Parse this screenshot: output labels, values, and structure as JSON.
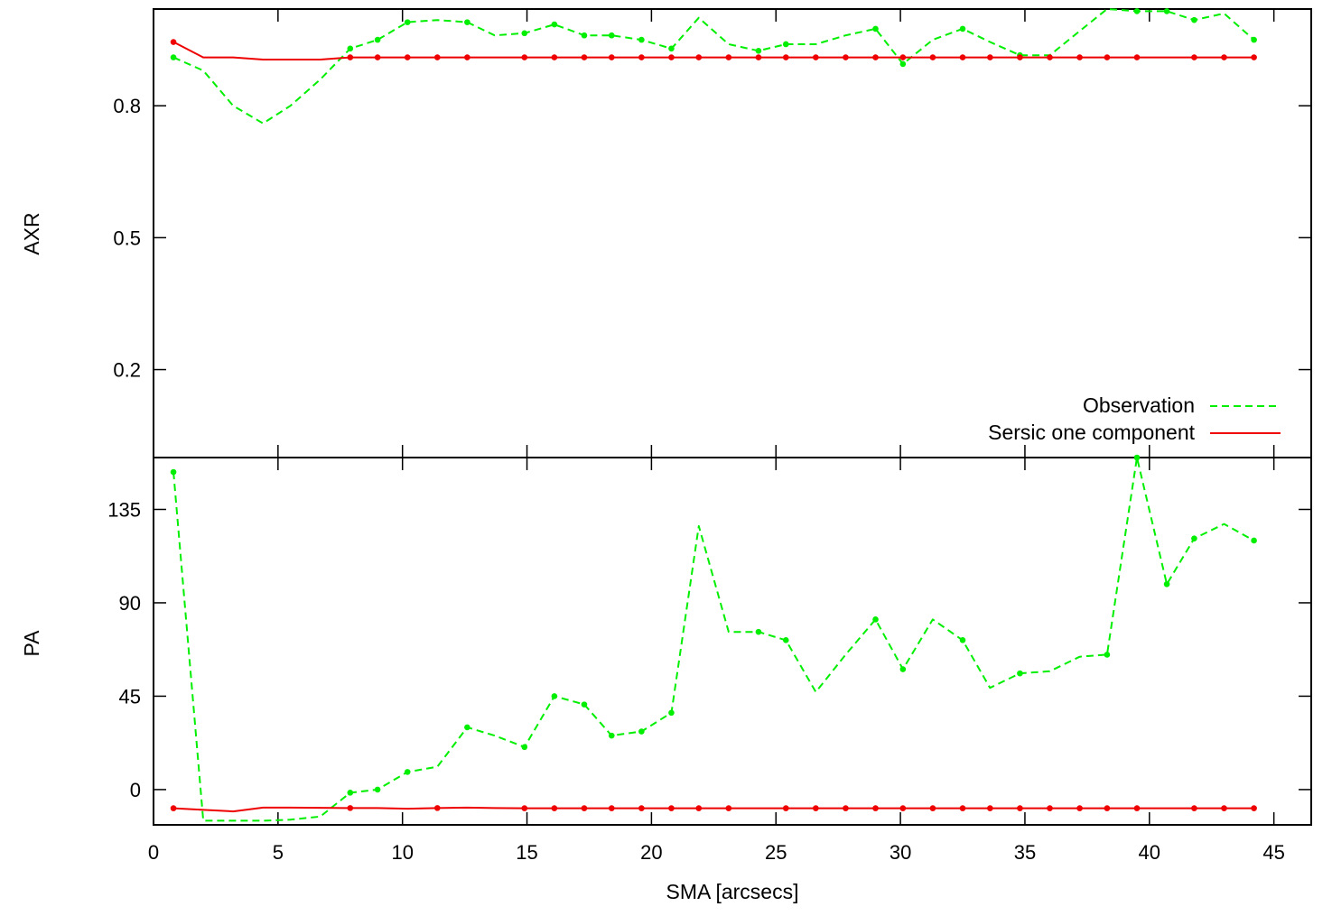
{
  "x_axis": {
    "label": "SMA [arcsecs]",
    "range": [
      0,
      46.5
    ],
    "ticks": [
      0,
      5,
      10,
      15,
      20,
      25,
      30,
      35,
      40,
      45
    ],
    "tick_labels": [
      "0",
      "5",
      "10",
      "15",
      "20",
      "25",
      "30",
      "35",
      "40",
      "45"
    ]
  },
  "legend": {
    "observation": "Observation",
    "sersic": "Sersic one component",
    "placement": "bottom-right of top panel"
  },
  "colors": {
    "observation": "#00ee00",
    "sersic": "#ee0000",
    "axes": "#000000"
  },
  "chart_data": [
    {
      "type": "line",
      "panel": "top",
      "ylabel": "AXR",
      "xlabel": "",
      "ylim": [
        0.0,
        1.02
      ],
      "yticks": [
        0.2,
        0.5,
        0.8
      ],
      "ytick_labels": [
        "0.2",
        "0.5",
        "0.8"
      ],
      "series": [
        {
          "name": "Observation",
          "style": "dashed",
          "x": [
            0.8,
            2.0,
            3.2,
            4.4,
            5.5,
            6.7,
            7.9,
            9.0,
            10.2,
            11.4,
            12.6,
            13.7,
            14.9,
            16.1,
            17.3,
            18.4,
            19.6,
            20.8,
            21.9,
            23.1,
            24.3,
            25.4,
            26.6,
            27.8,
            29.0,
            30.1,
            31.3,
            32.5,
            33.6,
            34.8,
            36.0,
            37.2,
            38.3,
            39.5,
            40.7,
            41.8,
            43.0,
            44.2
          ],
          "y": [
            0.91,
            0.88,
            0.8,
            0.76,
            0.8,
            0.86,
            0.93,
            0.95,
            0.99,
            0.995,
            0.99,
            0.96,
            0.965,
            0.985,
            0.96,
            0.96,
            0.95,
            0.93,
            1.0,
            0.94,
            0.925,
            0.94,
            0.94,
            0.96,
            0.975,
            0.895,
            0.95,
            0.975,
            0.945,
            0.915,
            0.915,
            0.97,
            1.02,
            1.015,
            1.015,
            0.995,
            1.01,
            0.95
          ],
          "markers_at": [
            0.8,
            7.9,
            9.0,
            10.2,
            12.6,
            14.9,
            16.1,
            17.3,
            18.4,
            19.6,
            20.8,
            24.3,
            25.4,
            29.0,
            30.1,
            32.5,
            34.8,
            39.5,
            40.7,
            41.8,
            44.2
          ]
        },
        {
          "name": "Sersic one component",
          "style": "solid",
          "x": [
            0.8,
            2.0,
            3.2,
            4.4,
            5.5,
            6.7,
            7.9,
            9.0,
            10.2,
            11.4,
            12.6,
            13.7,
            14.9,
            16.1,
            17.3,
            18.4,
            19.6,
            20.8,
            21.9,
            23.1,
            24.3,
            25.4,
            26.6,
            27.8,
            29.0,
            30.1,
            31.3,
            32.5,
            33.6,
            34.8,
            36.0,
            37.2,
            38.3,
            39.5,
            40.7,
            41.8,
            43.0,
            44.2
          ],
          "y": [
            0.945,
            0.91,
            0.91,
            0.905,
            0.905,
            0.905,
            0.91,
            0.91,
            0.91,
            0.91,
            0.91,
            0.91,
            0.91,
            0.91,
            0.91,
            0.91,
            0.91,
            0.91,
            0.91,
            0.91,
            0.91,
            0.91,
            0.91,
            0.91,
            0.91,
            0.91,
            0.91,
            0.91,
            0.91,
            0.91,
            0.91,
            0.91,
            0.91,
            0.91,
            0.91,
            0.91,
            0.91,
            0.91
          ],
          "markers_at": [
            0.8,
            7.9,
            9.0,
            10.2,
            11.4,
            12.6,
            14.9,
            16.1,
            17.3,
            18.4,
            19.6,
            20.8,
            21.9,
            23.1,
            24.3,
            25.4,
            26.6,
            27.8,
            29.0,
            30.1,
            31.3,
            32.5,
            33.6,
            34.8,
            36.0,
            37.2,
            38.3,
            39.5,
            41.8,
            43.0,
            44.2
          ]
        }
      ]
    },
    {
      "type": "line",
      "panel": "bottom",
      "ylabel": "PA",
      "xlabel": "SMA [arcsecs]",
      "ylim": [
        -17,
        160
      ],
      "yticks": [
        0,
        45,
        90,
        135
      ],
      "ytick_labels": [
        "0",
        "45",
        "90",
        "135"
      ],
      "series": [
        {
          "name": "Observation",
          "style": "dashed",
          "x": [
            0.8,
            2.0,
            3.2,
            4.4,
            5.5,
            6.7,
            7.9,
            9.0,
            10.2,
            11.4,
            12.6,
            13.7,
            14.9,
            16.1,
            17.3,
            18.4,
            19.6,
            20.8,
            21.9,
            23.1,
            24.3,
            25.4,
            26.6,
            27.8,
            29.0,
            30.1,
            31.3,
            32.5,
            33.6,
            34.8,
            36.0,
            37.2,
            38.3,
            39.5,
            40.7,
            41.8,
            43.0,
            44.2
          ],
          "y": [
            153,
            -15,
            -15,
            -15,
            -14.5,
            -13,
            -1.5,
            0,
            8.5,
            11,
            30,
            26,
            20.5,
            45,
            41,
            26,
            28,
            37,
            127,
            76,
            76,
            72,
            47,
            65,
            82,
            58,
            82,
            72,
            49,
            56,
            57,
            64,
            65,
            160,
            99,
            121,
            128,
            120
          ],
          "markers_at": [
            0.8,
            7.9,
            9.0,
            10.2,
            12.6,
            14.9,
            16.1,
            17.3,
            18.4,
            19.6,
            20.8,
            24.3,
            25.4,
            29.0,
            30.1,
            32.5,
            34.8,
            38.3,
            39.5,
            40.7,
            41.8,
            44.2
          ]
        },
        {
          "name": "Sersic one component",
          "style": "solid",
          "x": [
            0.8,
            2.0,
            3.2,
            4.4,
            5.5,
            6.7,
            7.9,
            9.0,
            10.2,
            11.4,
            12.6,
            13.7,
            14.9,
            16.1,
            17.3,
            18.4,
            19.6,
            20.8,
            21.9,
            23.1,
            24.3,
            25.4,
            26.6,
            27.8,
            29.0,
            30.1,
            31.3,
            32.5,
            33.6,
            34.8,
            36.0,
            37.2,
            38.3,
            39.5,
            40.7,
            41.8,
            43.0,
            44.2
          ],
          "y": [
            -9,
            -9.8,
            -10.5,
            -8.7,
            -8.7,
            -8.8,
            -8.9,
            -8.9,
            -9.2,
            -8.9,
            -8.7,
            -8.9,
            -9,
            -9,
            -9,
            -9,
            -9,
            -9,
            -9,
            -9,
            -9,
            -9,
            -9,
            -9,
            -9,
            -9,
            -9,
            -9,
            -9,
            -9,
            -9,
            -9,
            -9,
            -9,
            -9,
            -9,
            -9,
            -9
          ],
          "markers_at": [
            0.8,
            7.9,
            11.4,
            14.9,
            16.1,
            17.3,
            18.4,
            19.6,
            20.8,
            21.9,
            23.1,
            25.4,
            26.6,
            27.8,
            29.0,
            30.1,
            31.3,
            32.5,
            33.6,
            34.8,
            36.0,
            37.2,
            38.3,
            39.5,
            41.8,
            43.0,
            44.2
          ]
        }
      ]
    }
  ]
}
